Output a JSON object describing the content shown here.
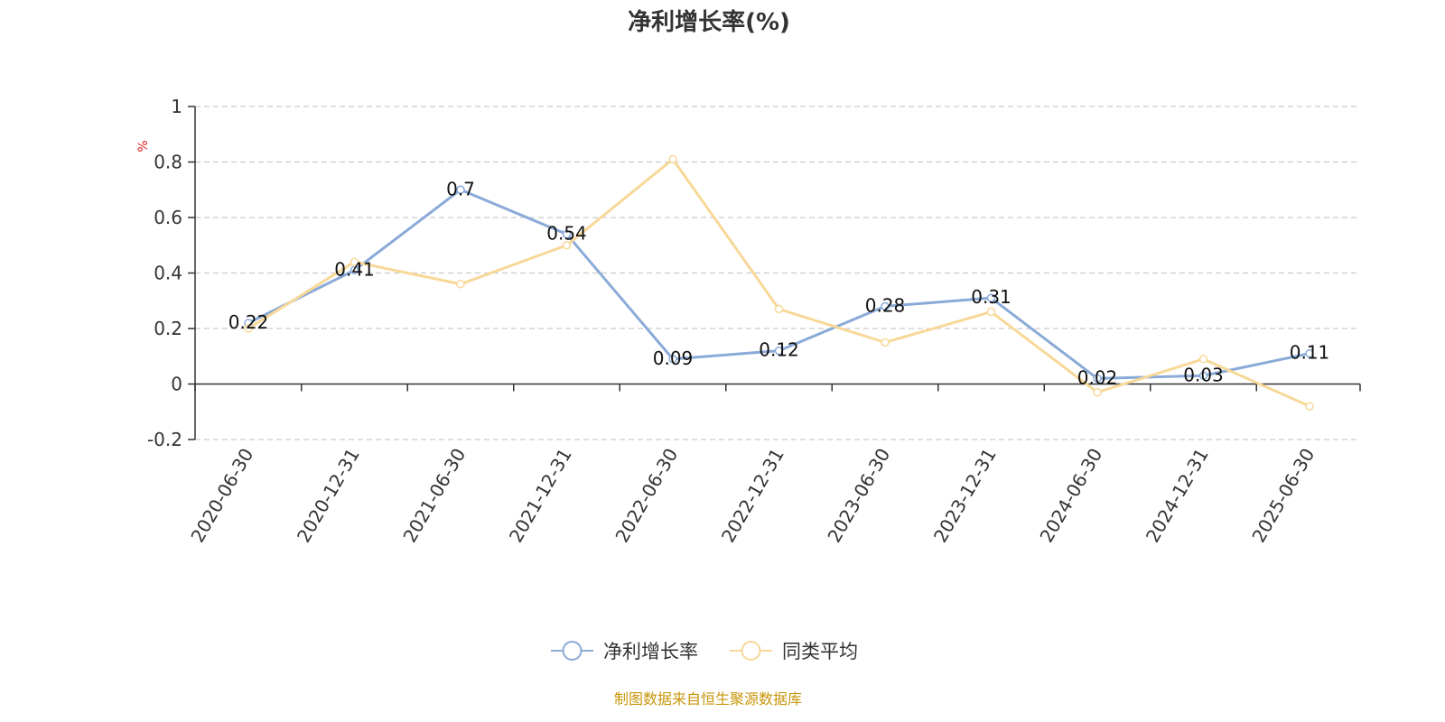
{
  "colors": {
    "series1": "#8aaad8",
    "series2": "#f8d898",
    "unit": "#e02020",
    "source": "#c8960a",
    "grid": "#cccccc",
    "axis": "#333333"
  },
  "footer": {
    "source": "制图数据来自恒生聚源数据库"
  },
  "chart_data": {
    "type": "line",
    "title": "净利增长率(%)",
    "ylabel": "%",
    "xlabel": "",
    "ylim": [
      -0.2,
      1
    ],
    "yticks": [
      -0.2,
      0,
      0.2,
      0.4,
      0.6,
      0.8,
      1
    ],
    "ytick_labels": [
      "-0.2",
      "0",
      "0.2",
      "0.4",
      "0.6",
      "0.8",
      "1"
    ],
    "grid": true,
    "legend_position": "bottom-center",
    "categories": [
      "2020-06-30",
      "2020-12-31",
      "2021-06-30",
      "2021-12-31",
      "2022-06-30",
      "2022-12-31",
      "2023-06-30",
      "2023-12-31",
      "2024-06-30",
      "2024-12-31",
      "2025-06-30"
    ],
    "series": [
      {
        "name": "净利增长率",
        "values": [
          0.22,
          0.41,
          0.7,
          0.54,
          0.09,
          0.12,
          0.28,
          0.31,
          0.02,
          0.03,
          0.11
        ],
        "labels": [
          "0.22",
          "0.41",
          "0.7",
          "0.54",
          "0.09",
          "0.12",
          "0.28",
          "0.31",
          "0.02",
          "0.03",
          "0.11"
        ]
      },
      {
        "name": "同类平均",
        "values": [
          0.2,
          0.44,
          0.36,
          0.5,
          0.81,
          0.27,
          0.15,
          0.26,
          -0.03,
          0.09,
          -0.08
        ]
      }
    ]
  }
}
